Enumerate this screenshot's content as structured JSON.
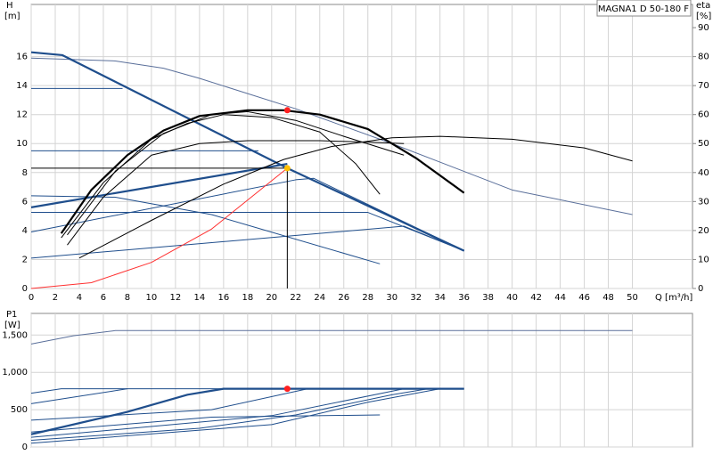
{
  "title": "MAGNA1 D 50-180 F",
  "chart_data": [
    {
      "type": "line",
      "ylabel": "H",
      "yunit": "[m]",
      "y2label": "eta",
      "y2unit": "[%]",
      "xlabel": "Q [m³/h]",
      "xlim": [
        0,
        55
      ],
      "xticks": [
        0,
        2,
        4,
        6,
        8,
        10,
        12,
        14,
        16,
        18,
        20,
        22,
        24,
        26,
        28,
        30,
        32,
        34,
        36,
        38,
        40,
        42,
        44,
        46,
        48,
        50
      ],
      "ylim": [
        0,
        19.6
      ],
      "yticks": [
        0,
        2,
        4,
        6,
        8,
        10,
        12,
        14,
        16
      ],
      "y2lim": [
        0,
        98
      ],
      "y2ticks": [
        0,
        10,
        20,
        30,
        40,
        50,
        60,
        70,
        80,
        90
      ],
      "grid": true,
      "series": [
        {
          "color": "#5a6f9a",
          "x": [
            0,
            7,
            11,
            14,
            22,
            30,
            40,
            50
          ],
          "values": [
            15.9,
            15.7,
            15.2,
            14.5,
            12.4,
            10,
            6.8,
            5.1
          ]
        },
        {
          "color": "#1f4e8c",
          "thick": true,
          "x": [
            0,
            2.6,
            21.3,
            36
          ],
          "values": [
            16.3,
            16.1,
            8.3,
            2.6
          ]
        },
        {
          "color": "#1f4e8c",
          "x": [
            0,
            7.6
          ],
          "values": [
            13.8,
            13.8
          ]
        },
        {
          "color": "#1f4e8c",
          "x": [
            0,
            18.9
          ],
          "values": [
            9.5,
            9.5
          ]
        },
        {
          "color": "#1f4e8c",
          "thick": true,
          "x": [
            0,
            21.3
          ],
          "values": [
            5.6,
            8.6
          ]
        },
        {
          "color": "#1f4e8c",
          "x": [
            0,
            7,
            15,
            29
          ],
          "values": [
            6.4,
            6.3,
            5.1,
            1.7
          ]
        },
        {
          "color": "#1f4e8c",
          "x": [
            0,
            28,
            36
          ],
          "values": [
            5.25,
            5.25,
            2.6
          ]
        },
        {
          "color": "#1f4e8c",
          "x": [
            0,
            22,
            23.5,
            36
          ],
          "values": [
            3.9,
            7.5,
            7.6,
            2.6
          ]
        },
        {
          "color": "#1f4e8c",
          "x": [
            0,
            31,
            36
          ],
          "values": [
            2.1,
            4.3,
            2.6
          ]
        },
        {
          "color": "#000000",
          "x": [
            4,
            10,
            16,
            21,
            25,
            30,
            34,
            40,
            46,
            50
          ],
          "values": [
            2.1,
            4.7,
            7.2,
            8.9,
            9.8,
            10.4,
            10.5,
            10.3,
            9.7,
            8.8
          ]
        },
        {
          "color": "#000000",
          "x": [
            3,
            6,
            10,
            14,
            18,
            24,
            28,
            31
          ],
          "values": [
            3,
            6.3,
            9.2,
            10,
            10.2,
            10.2,
            10.1,
            10
          ]
        },
        {
          "color": "#000000",
          "x": [
            2.5,
            6,
            10,
            13,
            16,
            20,
            24,
            27,
            29
          ],
          "values": [
            3.5,
            7.3,
            10.3,
            11.4,
            12,
            11.8,
            10.8,
            8.6,
            6.5
          ]
        },
        {
          "color": "#000000",
          "x": [
            3,
            7,
            11,
            15,
            18,
            22,
            26,
            31
          ],
          "values": [
            3.7,
            8.1,
            10.7,
            12,
            12.2,
            11.6,
            10.5,
            9.2
          ]
        },
        {
          "color": "#000000",
          "thick": true,
          "x": [
            2.5,
            5,
            8,
            11,
            14,
            18,
            21,
            24,
            28,
            32,
            36
          ],
          "values": [
            3.8,
            6.8,
            9.2,
            10.9,
            11.9,
            12.3,
            12.3,
            12,
            11,
            9,
            6.6
          ]
        },
        {
          "color": "#ff3030",
          "x": [
            0,
            5,
            10,
            15,
            21.3
          ],
          "values": [
            0,
            0.4,
            1.8,
            4.1,
            8.3
          ]
        },
        {
          "color": "#000000",
          "x": [
            0,
            21.3,
            21.3
          ],
          "values": [
            8.3,
            8.3,
            0
          ]
        },
        {
          "color": "#ffc000",
          "marker": true,
          "x": [
            21.3
          ],
          "values": [
            8.3
          ]
        },
        {
          "color": "#ff2020",
          "marker": true,
          "x": [
            21.3
          ],
          "values": [
            12.3
          ]
        }
      ]
    },
    {
      "type": "line",
      "ylabel": "P1",
      "yunit": "[W]",
      "xlim": [
        0,
        55
      ],
      "xticks": [
        0,
        2,
        4,
        6,
        8,
        10,
        12,
        14,
        16,
        18,
        20,
        22,
        24,
        26,
        28,
        30,
        32,
        34,
        36,
        38,
        40,
        42,
        44,
        46,
        48,
        50
      ],
      "xtick_labels": false,
      "ylim": [
        0,
        1790
      ],
      "yticks": [
        0,
        500,
        {
          "value": 1000,
          "label": "1,000"
        },
        {
          "value": 1500,
          "label": "1,500"
        }
      ],
      "grid": true,
      "series": [
        {
          "color": "#5a6f9a",
          "x": [
            0,
            3.5,
            7,
            50
          ],
          "values": [
            1380,
            1490,
            1560,
            1560
          ]
        },
        {
          "color": "#1f4e8c",
          "thick": true,
          "x": [
            0,
            8,
            13,
            16,
            36
          ],
          "values": [
            170,
            470,
            700,
            780,
            780
          ]
        },
        {
          "color": "#1f4e8c",
          "x": [
            0,
            2.5,
            36
          ],
          "values": [
            720,
            780,
            780
          ]
        },
        {
          "color": "#1f4e8c",
          "x": [
            0,
            8
          ],
          "values": [
            580,
            780
          ]
        },
        {
          "color": "#1f4e8c",
          "x": [
            0,
            15,
            23
          ],
          "values": [
            360,
            500,
            780
          ]
        },
        {
          "color": "#1f4e8c",
          "x": [
            0,
            15,
            29
          ],
          "values": [
            200,
            400,
            430
          ]
        },
        {
          "color": "#1f4e8c",
          "x": [
            0,
            20,
            31
          ],
          "values": [
            130,
            420,
            780
          ]
        },
        {
          "color": "#1f4e8c",
          "x": [
            0,
            14,
            22,
            30,
            33
          ],
          "values": [
            90,
            250,
            430,
            700,
            780
          ]
        },
        {
          "color": "#1f4e8c",
          "x": [
            0,
            20,
            28,
            34
          ],
          "values": [
            50,
            300,
            600,
            780
          ]
        },
        {
          "color": "#ff2020",
          "marker": true,
          "x": [
            21.3
          ],
          "values": [
            780
          ]
        }
      ]
    }
  ]
}
